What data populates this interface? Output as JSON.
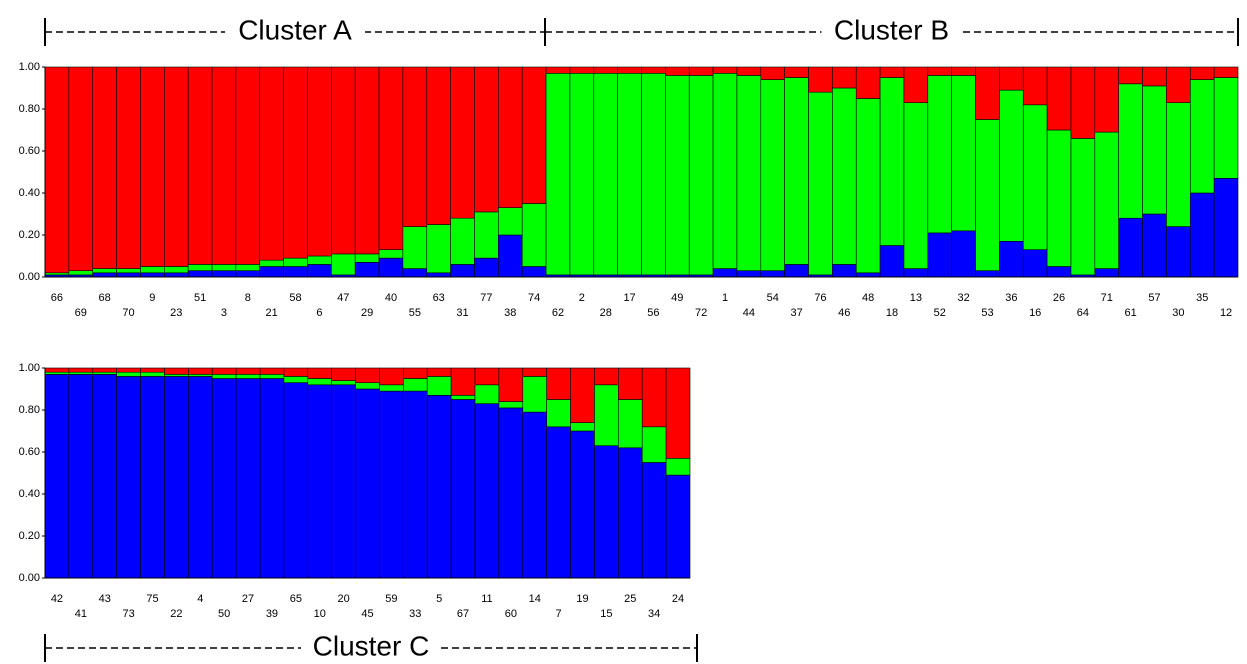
{
  "chart_data": [
    {
      "type": "stacked_bar",
      "categories": [
        "66",
        "69",
        "68",
        "70",
        "9",
        "23",
        "51",
        "3",
        "8",
        "21",
        "58",
        "6",
        "47",
        "29",
        "40",
        "55",
        "63",
        "31",
        "77",
        "38",
        "74",
        "62",
        "2",
        "28",
        "17",
        "56",
        "49",
        "72",
        "1",
        "44",
        "54",
        "37",
        "76",
        "46",
        "48",
        "18",
        "13",
        "52",
        "32",
        "53",
        "36",
        "16",
        "26",
        "64",
        "71",
        "61",
        "57",
        "30",
        "35",
        "12"
      ],
      "series": [
        {
          "color": "#0000ff",
          "values": [
            0.01,
            0.01,
            0.02,
            0.02,
            0.02,
            0.02,
            0.03,
            0.03,
            0.03,
            0.05,
            0.05,
            0.06,
            0.01,
            0.07,
            0.09,
            0.04,
            0.02,
            0.06,
            0.09,
            0.2,
            0.05,
            0.01,
            0.01,
            0.01,
            0.01,
            0.01,
            0.01,
            0.01,
            0.04,
            0.03,
            0.03,
            0.06,
            0.01,
            0.06,
            0.02,
            0.15,
            0.04,
            0.21,
            0.22,
            0.03,
            0.17,
            0.13,
            0.05,
            0.01,
            0.04,
            0.28,
            0.3,
            0.24,
            0.4,
            0.47
          ]
        },
        {
          "color": "#00ff00",
          "values": [
            0.01,
            0.02,
            0.02,
            0.02,
            0.03,
            0.03,
            0.03,
            0.03,
            0.03,
            0.03,
            0.04,
            0.04,
            0.1,
            0.04,
            0.04,
            0.2,
            0.23,
            0.22,
            0.22,
            0.13,
            0.3,
            0.96,
            0.96,
            0.96,
            0.96,
            0.96,
            0.95,
            0.95,
            0.93,
            0.93,
            0.91,
            0.89,
            0.87,
            0.84,
            0.83,
            0.8,
            0.79,
            0.75,
            0.74,
            0.72,
            0.72,
            0.69,
            0.65,
            0.65,
            0.65,
            0.64,
            0.61,
            0.59,
            0.54,
            0.48
          ]
        },
        {
          "color": "#ff0000",
          "values": [
            0.98,
            0.97,
            0.96,
            0.96,
            0.95,
            0.95,
            0.94,
            0.94,
            0.94,
            0.92,
            0.91,
            0.9,
            0.89,
            0.89,
            0.87,
            0.76,
            0.75,
            0.72,
            0.69,
            0.67,
            0.65,
            0.03,
            0.03,
            0.03,
            0.03,
            0.03,
            0.04,
            0.04,
            0.03,
            0.04,
            0.06,
            0.05,
            0.12,
            0.1,
            0.15,
            0.05,
            0.17,
            0.04,
            0.04,
            0.25,
            0.11,
            0.18,
            0.3,
            0.34,
            0.31,
            0.08,
            0.09,
            0.17,
            0.06,
            0.05
          ]
        }
      ],
      "ylim": [
        0,
        1
      ],
      "yticks": [
        {
          "value": 0,
          "label": "0.00"
        },
        {
          "value": 0.2,
          "label": "0.20"
        },
        {
          "value": 0.4,
          "label": "0.40"
        },
        {
          "value": 0.6,
          "label": "0.60"
        },
        {
          "value": 0.8,
          "label": "0.80"
        },
        {
          "value": 1,
          "label": "1.00"
        }
      ],
      "annotations": [
        "Cluster A",
        "Cluster B"
      ]
    },
    {
      "type": "stacked_bar",
      "categories": [
        "42",
        "41",
        "43",
        "73",
        "75",
        "22",
        "4",
        "50",
        "27",
        "39",
        "65",
        "10",
        "20",
        "45",
        "59",
        "33",
        "5",
        "67",
        "11",
        "60",
        "14",
        "7",
        "19",
        "15",
        "25",
        "34",
        "24"
      ],
      "series": [
        {
          "color": "#0000ff",
          "values": [
            0.97,
            0.97,
            0.97,
            0.96,
            0.96,
            0.96,
            0.96,
            0.95,
            0.95,
            0.95,
            0.93,
            0.92,
            0.92,
            0.9,
            0.89,
            0.89,
            0.87,
            0.85,
            0.83,
            0.81,
            0.79,
            0.72,
            0.7,
            0.63,
            0.62,
            0.55,
            0.49
          ]
        },
        {
          "color": "#00ff00",
          "values": [
            0.01,
            0.01,
            0.01,
            0.02,
            0.02,
            0.01,
            0.01,
            0.02,
            0.02,
            0.02,
            0.03,
            0.03,
            0.02,
            0.03,
            0.03,
            0.06,
            0.09,
            0.02,
            0.09,
            0.03,
            0.17,
            0.13,
            0.04,
            0.29,
            0.23,
            0.17,
            0.08
          ]
        },
        {
          "color": "#ff0000",
          "values": [
            0.02,
            0.02,
            0.02,
            0.02,
            0.02,
            0.03,
            0.03,
            0.03,
            0.03,
            0.03,
            0.04,
            0.05,
            0.06,
            0.07,
            0.08,
            0.05,
            0.04,
            0.13,
            0.08,
            0.16,
            0.04,
            0.15,
            0.26,
            0.08,
            0.15,
            0.28,
            0.43
          ]
        }
      ],
      "ylim": [
        0,
        1
      ],
      "yticks": [
        {
          "value": 0,
          "label": "0.00"
        },
        {
          "value": 0.2,
          "label": "0.20"
        },
        {
          "value": 0.4,
          "label": "0.40"
        },
        {
          "value": 0.6,
          "label": "0.60"
        },
        {
          "value": 0.8,
          "label": "0.80"
        },
        {
          "value": 1,
          "label": "1.00"
        }
      ],
      "annotations": [
        "Cluster C"
      ]
    }
  ]
}
